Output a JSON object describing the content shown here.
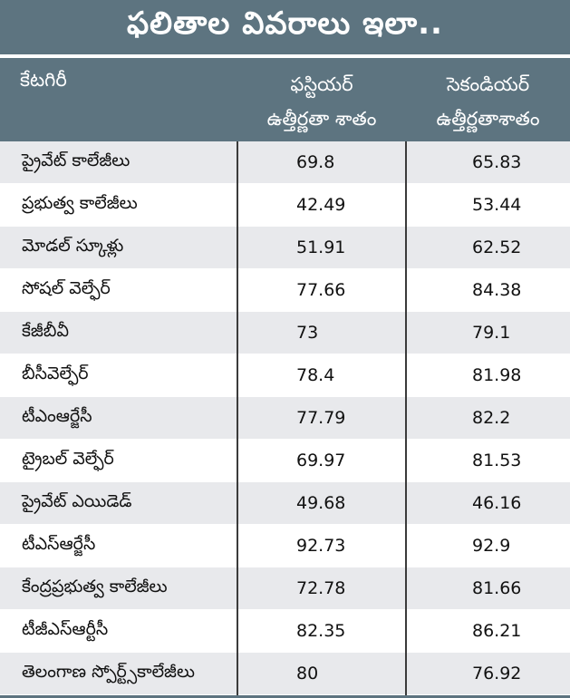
{
  "title": "ఫలితాల వివరాలు ఇలా..",
  "columns": {
    "category": "కేటగిరీ",
    "first_year": [
      "ఫస్టియర్",
      "ఉత్తీర్ణతా శాతం"
    ],
    "second_year": [
      "సెకండియర్",
      "ఉత్తీర్ణతాశాతం"
    ]
  },
  "rows": [
    {
      "category": "ప్రైవేట్ కాలేజీలు",
      "first_year": "69.8",
      "second_year": "65.83"
    },
    {
      "category": "ప్రభుత్వ కాలేజీలు",
      "first_year": "42.49",
      "second_year": "53.44"
    },
    {
      "category": "మోడల్ స్కూళ్లు",
      "first_year": "51.91",
      "second_year": "62.52"
    },
    {
      "category": "సోషల్ వెల్ఫేర్",
      "first_year": "77.66",
      "second_year": "84.38"
    },
    {
      "category": "కేజీబీవీ",
      "first_year": "73",
      "second_year": "79.1"
    },
    {
      "category": "బీసీవెల్ఫేర్",
      "first_year": "78.4",
      "second_year": "81.98"
    },
    {
      "category": "టీఎంఆర్జేసీ",
      "first_year": "77.79",
      "second_year": "82.2"
    },
    {
      "category": "ట్రైబల్ వెల్ఫేర్",
      "first_year": "69.97",
      "second_year": "81.53"
    },
    {
      "category": "ప్రైవేట్ ఎయిడెడ్",
      "first_year": "49.68",
      "second_year": "46.16"
    },
    {
      "category": "టీఎస్ఆర్జేసీ",
      "first_year": "92.73",
      "second_year": "92.9"
    },
    {
      "category": "కేంద్రప్రభుత్వ కాలేజీలు",
      "first_year": "72.78",
      "second_year": "81.66"
    },
    {
      "category": "టీజీఎస్ఆర్టీసీ",
      "first_year": "82.35",
      "second_year": "86.21"
    },
    {
      "category": "తెలంగాణ స్పోర్ట్స్‌కాలేజీలు",
      "first_year": "80",
      "second_year": "76.92"
    }
  ],
  "colors": {
    "header_bg": "#5d7480",
    "row_alt": "#e8e9ec",
    "divider": "#3b3b3b"
  }
}
